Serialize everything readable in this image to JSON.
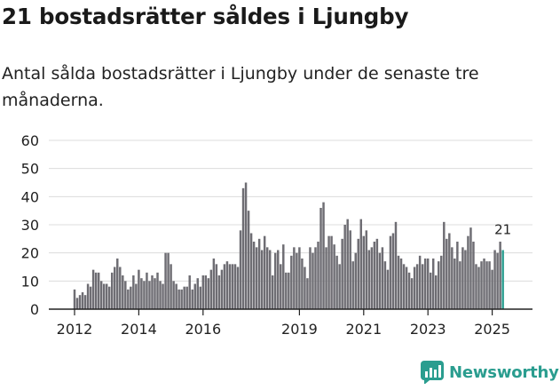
{
  "title": "21 bostadsrätter såldes i Ljungby",
  "subtitle": "Antal sålda bostadsrätter i Ljungby under de senaste tre månaderna.",
  "brand": {
    "name": "Newsworthy"
  },
  "colors": {
    "bar": "#6e6d73",
    "highlight": "#2a9d8f",
    "grid": "#dcdcdc",
    "axis": "#222222",
    "text": "#222222"
  },
  "chart_data": {
    "type": "bar",
    "title": "21 bostadsrätter såldes i Ljungby",
    "xlabel": "",
    "ylabel": "",
    "ylim": [
      0,
      60
    ],
    "yticks": [
      0,
      10,
      20,
      30,
      40,
      50,
      60
    ],
    "x_start": 2012.0,
    "bar_step": 0.08333,
    "xtick_labels": [
      "2012",
      "2014",
      "2016",
      "2019",
      "2021",
      "2023",
      "2025"
    ],
    "xtick_positions": [
      2012,
      2014,
      2016,
      2019,
      2021,
      2023,
      2025
    ],
    "highlight_label": "21",
    "values": [
      7,
      4,
      5,
      6,
      5,
      9,
      8,
      14,
      13,
      13,
      10,
      9,
      9,
      8,
      13,
      15,
      18,
      15,
      12,
      10,
      7,
      8,
      12,
      9,
      14,
      11,
      10,
      13,
      10,
      12,
      11,
      13,
      10,
      9,
      20,
      20,
      16,
      10,
      9,
      7,
      7,
      8,
      8,
      12,
      7,
      9,
      11,
      8,
      12,
      12,
      11,
      14,
      18,
      16,
      12,
      14,
      16,
      17,
      16,
      16,
      16,
      15,
      28,
      43,
      45,
      35,
      27,
      24,
      22,
      25,
      21,
      26,
      22,
      21,
      12,
      20,
      21,
      16,
      23,
      13,
      13,
      19,
      22,
      20,
      22,
      18,
      15,
      11,
      22,
      20,
      22,
      24,
      36,
      38,
      22,
      26,
      26,
      23,
      19,
      16,
      25,
      30,
      32,
      28,
      17,
      20,
      25,
      32,
      26,
      28,
      21,
      22,
      24,
      25,
      20,
      22,
      17,
      14,
      26,
      27,
      31,
      19,
      18,
      16,
      15,
      13,
      11,
      15,
      16,
      19,
      16,
      18,
      18,
      13,
      18,
      12,
      17,
      19,
      31,
      25,
      27,
      22,
      18,
      24,
      17,
      22,
      21,
      26,
      29,
      24,
      16,
      15,
      17,
      18,
      17,
      17,
      14,
      21,
      20,
      24,
      21
    ]
  }
}
